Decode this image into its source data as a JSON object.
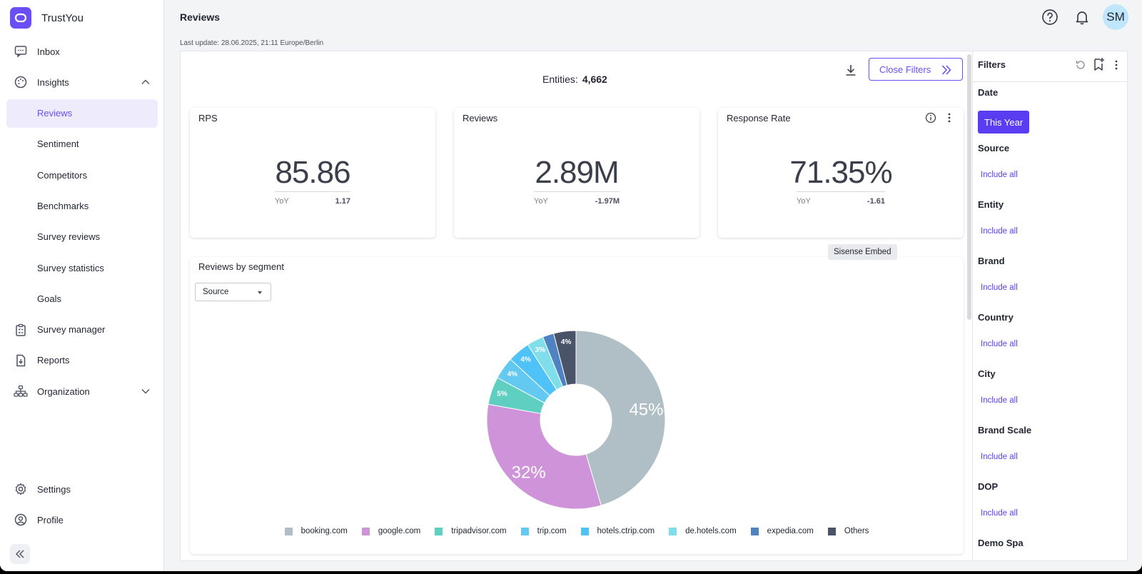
{
  "app": {
    "name": "TrustYou"
  },
  "nav": {
    "inbox": "Inbox",
    "insights": "Insights",
    "reviews": "Reviews",
    "sentiment": "Sentiment",
    "competitors": "Competitors",
    "benchmarks": "Benchmarks",
    "survey_reviews": "Survey reviews",
    "survey_statistics": "Survey statistics",
    "goals": "Goals",
    "survey_manager": "Survey manager",
    "reports": "Reports",
    "organization": "Organization",
    "settings": "Settings",
    "profile": "Profile"
  },
  "header": {
    "title": "Reviews",
    "avatar_initials": "SM",
    "last_update": "Last update: 28.06.2025, 21:11 Europe/Berlin"
  },
  "toolbar": {
    "entities_label": "Entities:",
    "entities_value": "4,662",
    "close_filters": "Close Filters"
  },
  "kpis": [
    {
      "title": "RPS",
      "value": "85.86",
      "yoy_label": "YoY",
      "yoy_delta": "1.17"
    },
    {
      "title": "Reviews",
      "value": "2.89M",
      "yoy_label": "YoY",
      "yoy_delta": "-1.97M"
    },
    {
      "title": "Response Rate",
      "value": "71.35%",
      "yoy_label": "YoY",
      "yoy_delta": "-1.61"
    }
  ],
  "tooltip": "Sisense Embed",
  "segment": {
    "title": "Reviews by segment",
    "select_value": "Source"
  },
  "chart_data": {
    "type": "pie",
    "title": "Reviews by segment",
    "categories": [
      "booking.com",
      "google.com",
      "tripadvisor.com",
      "trip.com",
      "hotels.ctrip.com",
      "de.hotels.com",
      "expedia.com",
      "Others"
    ],
    "values": [
      45,
      32,
      5,
      4,
      4,
      3,
      2,
      4
    ],
    "labels": [
      "45%",
      "32%",
      "5%",
      "4%",
      "4%",
      "3%",
      "",
      "4%"
    ],
    "colors": [
      "#b0bec5",
      "#ce93d8",
      "#5fcfc2",
      "#63c9f0",
      "#4fc3f7",
      "#80deea",
      "#4e82c0",
      "#4a5468"
    ],
    "donut": true,
    "legend": "bottom"
  },
  "filters": {
    "title": "Filters",
    "date": {
      "label": "Date",
      "chip": "This Year"
    },
    "sections": [
      {
        "label": "Source",
        "link": "Include all"
      },
      {
        "label": "Entity",
        "link": "Include all"
      },
      {
        "label": "Brand",
        "link": "Include all"
      },
      {
        "label": "Country",
        "link": "Include all"
      },
      {
        "label": "City",
        "link": "Include all"
      },
      {
        "label": "Brand Scale",
        "link": "Include all"
      },
      {
        "label": "DOP",
        "link": "Include all"
      },
      {
        "label": "Demo Spa",
        "link": ""
      }
    ]
  }
}
